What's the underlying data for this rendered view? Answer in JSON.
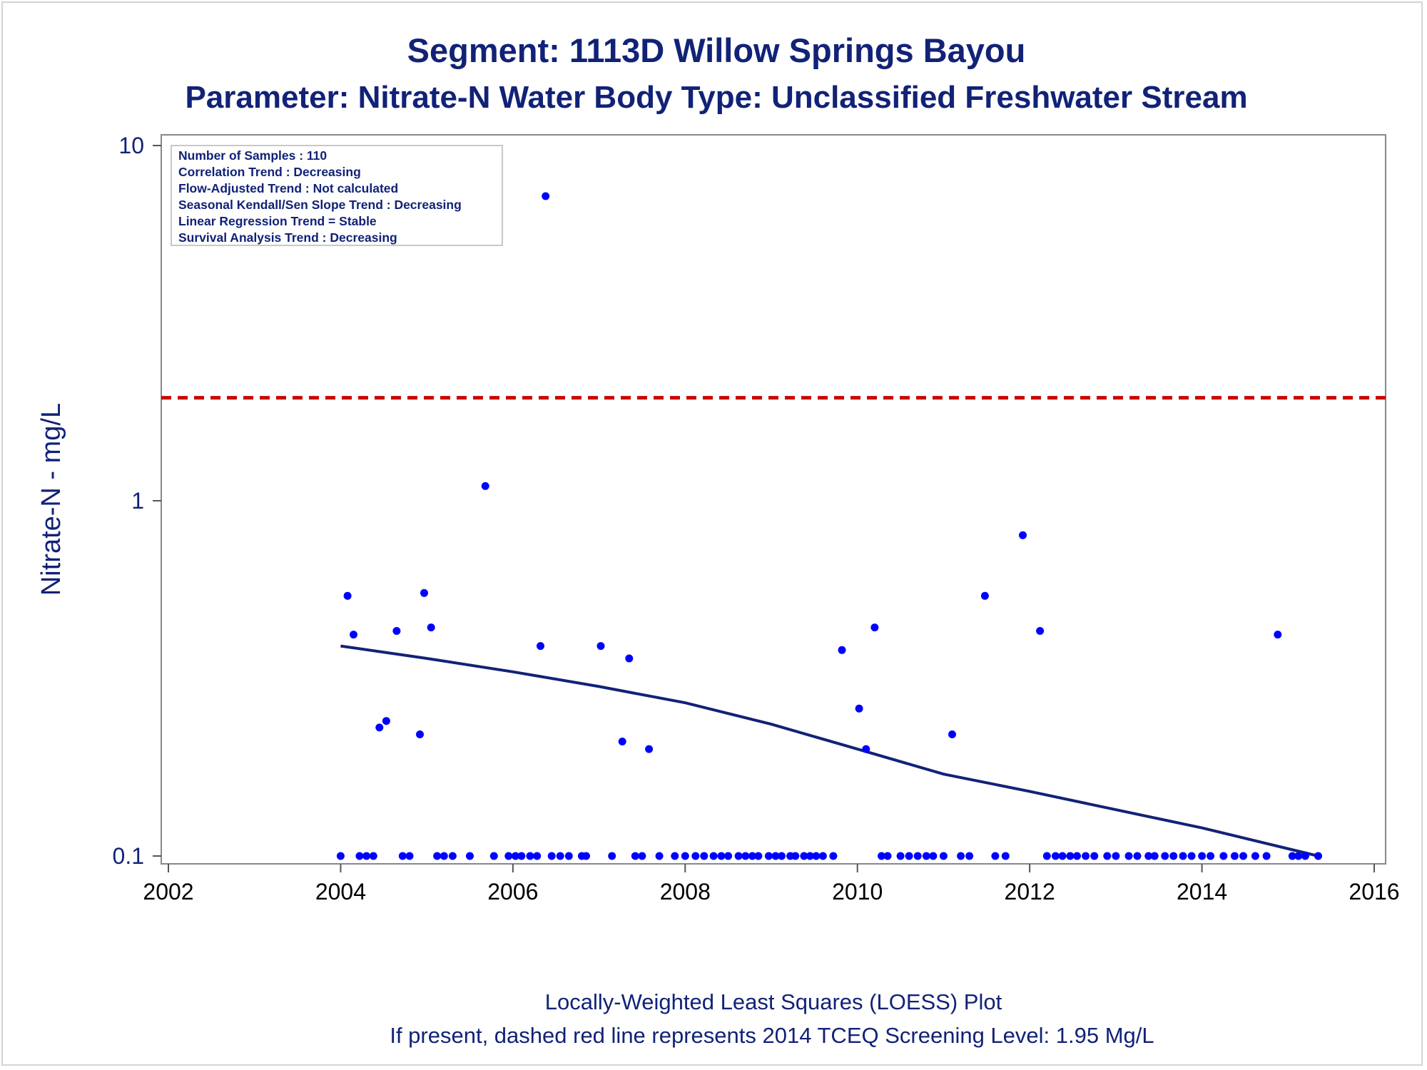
{
  "chart_data": {
    "type": "scatter",
    "title": "Segment: 1113D  Willow Springs Bayou",
    "subtitle": "Parameter: Nitrate-N   Water Body Type: Unclassified Freshwater Stream",
    "xlabel": "",
    "ylabel": "Nitrate-N - mg/L",
    "xlim": [
      2002,
      2016
    ],
    "ylim": [
      0.1,
      10
    ],
    "y_scale": "log",
    "x_ticks": [
      "2002",
      "2004",
      "2006",
      "2008",
      "2010",
      "2012",
      "2014",
      "2016"
    ],
    "y_ticks": [
      "0.1",
      "1",
      "10"
    ],
    "grid": false,
    "info_box": {
      "placement": "top-left",
      "lines": [
        "Number of Samples : 110",
        "Correlation Trend : Decreasing",
        "Flow-Adjusted Trend : Not calculated",
        "Seasonal Kendall/Sen Slope Trend : Decreasing",
        "Linear Regression Trend = Stable",
        "Survival Analysis Trend : Decreasing"
      ]
    },
    "screening_level": {
      "value": 1.95,
      "color": "#cc0000",
      "style": "dashed"
    },
    "series": [
      {
        "type": "scatter",
        "color": "#0000ff",
        "x": [
          2004.0,
          2004.08,
          2004.15,
          2004.22,
          2004.3,
          2004.38,
          2004.45,
          2004.53,
          2004.65,
          2004.72,
          2004.8,
          2004.92,
          2004.97,
          2005.05,
          2005.12,
          2005.2,
          2005.3,
          2005.5,
          2005.68,
          2005.78,
          2005.95,
          2006.03,
          2006.1,
          2006.2,
          2006.28,
          2006.32,
          2006.38,
          2006.45,
          2006.55,
          2006.65,
          2006.8,
          2006.85,
          2007.02,
          2007.15,
          2007.27,
          2007.35,
          2007.42,
          2007.5,
          2007.58,
          2007.7,
          2007.88,
          2008.0,
          2008.12,
          2008.22,
          2008.33,
          2008.42,
          2008.5,
          2008.62,
          2008.7,
          2008.78,
          2008.85,
          2008.97,
          2009.05,
          2009.12,
          2009.22,
          2009.28,
          2009.38,
          2009.45,
          2009.52,
          2009.6,
          2009.72,
          2009.82,
          2010.02,
          2010.1,
          2010.2,
          2010.28,
          2010.35,
          2010.5,
          2010.6,
          2010.7,
          2010.8,
          2010.88,
          2011.0,
          2011.1,
          2011.2,
          2011.3,
          2011.48,
          2011.6,
          2011.72,
          2011.92,
          2012.12,
          2012.2,
          2012.3,
          2012.38,
          2012.47,
          2012.55,
          2012.65,
          2012.75,
          2012.9,
          2013.0,
          2013.15,
          2013.25,
          2013.38,
          2013.45,
          2013.57,
          2013.67,
          2013.78,
          2013.88,
          2014.0,
          2014.1,
          2014.25,
          2014.38,
          2014.48,
          2014.62,
          2014.75,
          2014.88,
          2015.05,
          2015.12,
          2015.2,
          2015.35
        ],
        "y": [
          0.1,
          0.54,
          0.42,
          0.1,
          0.1,
          0.1,
          0.23,
          0.24,
          0.43,
          0.1,
          0.1,
          0.22,
          0.55,
          0.44,
          0.1,
          0.1,
          0.1,
          0.1,
          1.1,
          0.1,
          0.1,
          0.1,
          0.1,
          0.1,
          0.1,
          0.39,
          7.2,
          0.1,
          0.1,
          0.1,
          0.1,
          0.1,
          0.39,
          0.1,
          0.21,
          0.36,
          0.1,
          0.1,
          0.2,
          0.1,
          0.1,
          0.1,
          0.1,
          0.1,
          0.1,
          0.1,
          0.1,
          0.1,
          0.1,
          0.1,
          0.1,
          0.1,
          0.1,
          0.1,
          0.1,
          0.1,
          0.1,
          0.1,
          0.1,
          0.1,
          0.1,
          0.38,
          0.26,
          0.2,
          0.44,
          0.1,
          0.1,
          0.1,
          0.1,
          0.1,
          0.1,
          0.1,
          0.1,
          0.22,
          0.1,
          0.1,
          0.54,
          0.1,
          0.1,
          0.8,
          0.43,
          0.1,
          0.1,
          0.1,
          0.1,
          0.1,
          0.1,
          0.1,
          0.1,
          0.1,
          0.1,
          0.1,
          0.1,
          0.1,
          0.1,
          0.1,
          0.1,
          0.1,
          0.1,
          0.1,
          0.1,
          0.1,
          0.1,
          0.1,
          0.1,
          0.42,
          0.1,
          0.1,
          0.1,
          0.1
        ]
      },
      {
        "type": "line",
        "color": "#112277",
        "x": [
          2004.0,
          2005.0,
          2006.0,
          2007.0,
          2008.0,
          2009.0,
          2010.0,
          2011.0,
          2012.0,
          2013.0,
          2014.0,
          2015.35
        ],
        "y": [
          0.39,
          0.36,
          0.33,
          0.3,
          0.27,
          0.235,
          0.2,
          0.17,
          0.152,
          0.135,
          0.12,
          0.1
        ]
      }
    ]
  },
  "footnotes": {
    "line1": "Locally-Weighted Least Squares (LOESS) Plot",
    "line2": "If present, dashed red line represents 2014 TCEQ Screening Level: 1.95 Mg/L"
  }
}
